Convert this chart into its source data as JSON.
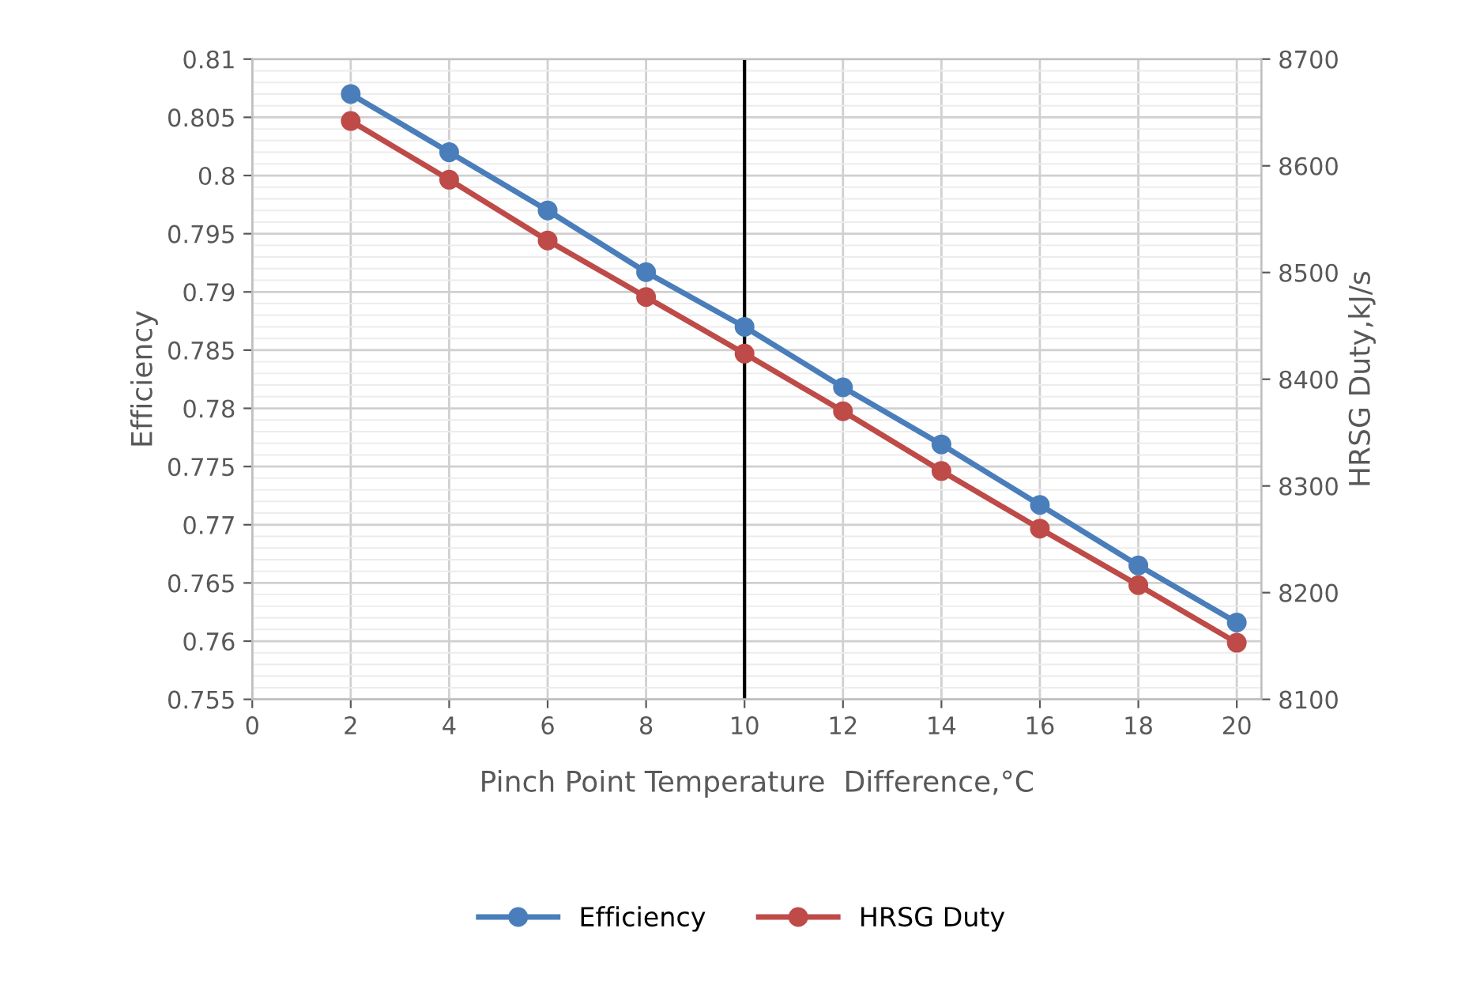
{
  "chart_data": {
    "type": "line",
    "xlabel": "Pinch Point Temperature  Difference,°C",
    "ylabel": "Efficiency",
    "y2label": "HRSG Duty,kJ/s",
    "x": [
      2,
      4,
      6,
      8,
      10,
      12,
      14,
      16,
      18,
      20
    ],
    "series": [
      {
        "name": "Efficiency",
        "color": "#4a7ebb",
        "values": [
          0.807,
          0.802,
          0.797,
          0.7917,
          0.787,
          0.7818,
          0.7769,
          0.7717,
          0.7665,
          0.7616
        ]
      },
      {
        "name": "HRSG Duty",
        "color": "#be4b48",
        "axis": "y2",
        "values": [
          8642,
          8587,
          8530,
          8477,
          8424,
          8370,
          8314,
          8260,
          8207,
          8153
        ]
      }
    ],
    "xlim": [
      0,
      20.5
    ],
    "xticks": [
      0,
      2,
      4,
      6,
      8,
      10,
      12,
      14,
      16,
      18,
      20
    ],
    "ylim": [
      0.755,
      0.81
    ],
    "yticks": [
      {
        "value": 0.755,
        "label": "0.755"
      },
      {
        "value": 0.76,
        "label": "0.76"
      },
      {
        "value": 0.765,
        "label": "0.765"
      },
      {
        "value": 0.77,
        "label": "0.77"
      },
      {
        "value": 0.775,
        "label": "0.775"
      },
      {
        "value": 0.78,
        "label": "0.78"
      },
      {
        "value": 0.785,
        "label": "0.785"
      },
      {
        "value": 0.79,
        "label": "0.79"
      },
      {
        "value": 0.795,
        "label": "0.795"
      },
      {
        "value": 0.8,
        "label": "0.8"
      },
      {
        "value": 0.805,
        "label": "0.805"
      },
      {
        "value": 0.81,
        "label": "0.81"
      }
    ],
    "y2lim": [
      8100,
      8700
    ],
    "y2ticks": [
      8100,
      8200,
      8300,
      8400,
      8500,
      8600,
      8700
    ],
    "ref_lines": [
      {
        "axis": "x",
        "value": 10,
        "color": "#000000"
      }
    ],
    "grid": true,
    "legend": "bottom",
    "marker": "circle",
    "line_style": "solid"
  }
}
